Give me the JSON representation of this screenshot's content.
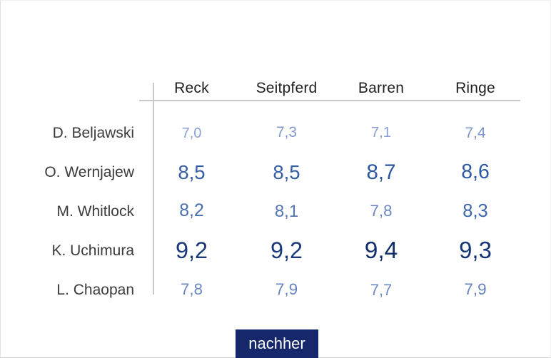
{
  "table": {
    "columns": [
      "Reck",
      "Seitpferd",
      "Barren",
      "Ringe"
    ],
    "rows": [
      {
        "name": "D. Beljawski",
        "scores": [
          "7,0",
          "7,3",
          "7,1",
          "7,4"
        ]
      },
      {
        "name": "O. Wernjajew",
        "scores": [
          "8,5",
          "8,5",
          "8,7",
          "8,6"
        ]
      },
      {
        "name": "M. Whitlock",
        "scores": [
          "8,2",
          "8,1",
          "7,8",
          "8,3"
        ]
      },
      {
        "name": "K. Uchimura",
        "scores": [
          "9,2",
          "9,2",
          "9,4",
          "9,3"
        ]
      },
      {
        "name": "L. Chaopan",
        "scores": [
          "7,8",
          "7,9",
          "7,7",
          "7,9"
        ]
      }
    ]
  },
  "button": {
    "label": "nachher",
    "bg": "#16286B",
    "fg": "#FFFFFF"
  },
  "score_style": {
    "comment": "font size (px) and blue shade scale with score value",
    "stops": [
      {
        "value": 7.0,
        "size": 20,
        "color": "#8CA2D2"
      },
      {
        "value": 7.9,
        "size": 22.5,
        "color": "#6584C1"
      },
      {
        "value": 8.3,
        "size": 25.5,
        "color": "#3E67AC"
      },
      {
        "value": 8.7,
        "size": 29.5,
        "color": "#2A55A0"
      },
      {
        "value": 9.4,
        "size": 33.5,
        "color": "#132E6B"
      }
    ]
  },
  "lines_color": "#C9C9C9",
  "chart_data": {
    "type": "table",
    "title": "",
    "columns": [
      "Reck",
      "Seitpferd",
      "Barren",
      "Ringe"
    ],
    "rows": [
      "D. Beljawski",
      "O. Wernjajew",
      "M. Whitlock",
      "K. Uchimura",
      "L. Chaopan"
    ],
    "values": [
      [
        7.0,
        7.3,
        7.1,
        7.4
      ],
      [
        8.5,
        8.5,
        8.7,
        8.6
      ],
      [
        8.2,
        8.1,
        7.8,
        8.3
      ],
      [
        9.2,
        9.2,
        9.4,
        9.3
      ],
      [
        7.8,
        7.9,
        7.7,
        7.9
      ]
    ],
    "decimal_separator": ",",
    "value_encoding": "higher scores rendered larger and in darker blue",
    "footer_button": "nachher"
  }
}
